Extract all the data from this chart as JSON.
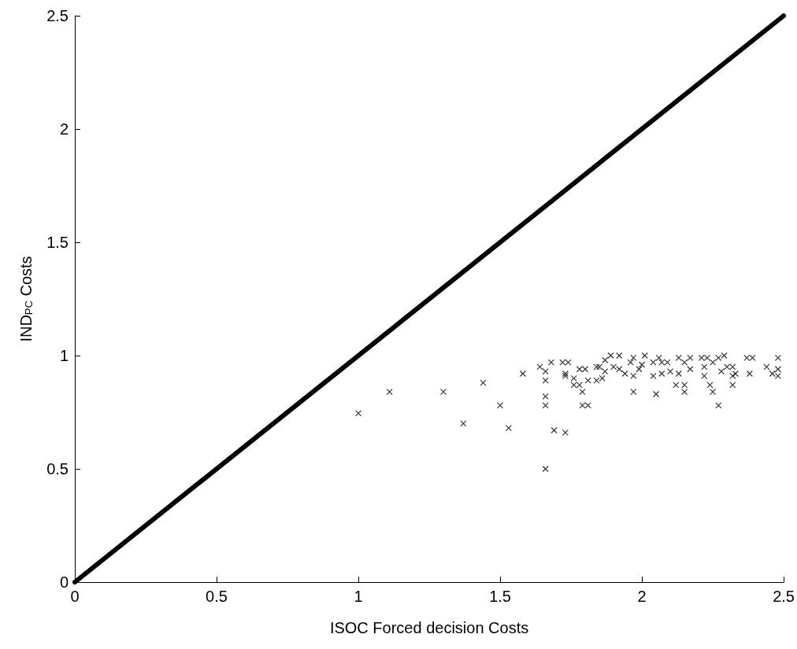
{
  "chart_data": {
    "type": "scatter",
    "xlabel": "ISOC Forced decision Costs",
    "ylabel": "IND$_{PC}$ Costs",
    "xlim": [
      0,
      2.5
    ],
    "ylim": [
      0,
      2.5
    ],
    "xticks": [
      0,
      0.5,
      1,
      1.5,
      2,
      2.5
    ],
    "yticks": [
      0,
      0.5,
      1,
      1.5,
      2,
      2.5
    ],
    "grid": false,
    "series": [
      {
        "type": "line",
        "color": "#000000",
        "x": [
          0,
          2.5
        ],
        "values": [
          0,
          2.5
        ]
      },
      {
        "marker": "cross",
        "color": "#000000",
        "x": [
          1.0,
          1.11,
          1.3,
          1.37,
          1.44,
          1.5,
          1.53,
          1.58,
          1.64,
          1.66,
          1.68,
          1.73,
          1.66,
          1.66,
          1.66,
          1.66,
          1.69,
          1.72,
          1.74,
          1.73,
          1.73,
          1.76,
          1.76,
          1.78,
          1.79,
          1.79,
          1.81,
          1.81,
          1.78,
          1.8,
          1.84,
          1.85,
          1.84,
          1.86,
          1.87,
          1.89,
          1.92,
          1.87,
          1.9,
          1.92,
          1.94,
          1.96,
          1.97,
          1.97,
          1.97,
          1.99,
          2.01,
          2.0,
          2.04,
          2.04,
          2.05,
          2.06,
          2.07,
          2.07,
          2.09,
          2.1,
          2.12,
          2.13,
          2.13,
          2.15,
          2.15,
          2.15,
          2.17,
          2.17,
          2.21,
          2.22,
          2.22,
          2.23,
          2.24,
          2.25,
          2.25,
          2.27,
          2.27,
          2.28,
          2.29,
          2.3,
          2.32,
          2.32,
          2.32,
          2.33,
          2.37,
          2.39,
          2.38,
          2.44,
          2.46,
          2.48,
          2.48,
          2.48
        ],
        "values": [
          0.745,
          0.84,
          0.84,
          0.7,
          0.88,
          0.78,
          0.68,
          0.92,
          0.95,
          0.5,
          0.97,
          0.66,
          0.93,
          0.89,
          0.82,
          0.78,
          0.67,
          0.97,
          0.97,
          0.92,
          0.91,
          0.9,
          0.87,
          0.87,
          0.84,
          0.78,
          0.78,
          0.89,
          0.94,
          0.94,
          0.95,
          0.95,
          0.89,
          0.9,
          0.98,
          1.0,
          1.0,
          0.93,
          0.95,
          0.94,
          0.92,
          0.97,
          0.99,
          0.91,
          0.84,
          0.94,
          1.0,
          0.96,
          0.97,
          0.91,
          0.83,
          0.99,
          0.97,
          0.92,
          0.97,
          0.93,
          0.87,
          0.99,
          0.92,
          0.87,
          0.84,
          0.97,
          0.99,
          0.94,
          0.99,
          0.95,
          0.91,
          0.99,
          0.87,
          0.84,
          0.97,
          0.99,
          0.78,
          0.93,
          1.0,
          0.95,
          0.95,
          0.91,
          0.87,
          0.92,
          0.99,
          0.99,
          0.92,
          0.95,
          0.92,
          0.99,
          0.94,
          0.91
        ]
      }
    ]
  }
}
